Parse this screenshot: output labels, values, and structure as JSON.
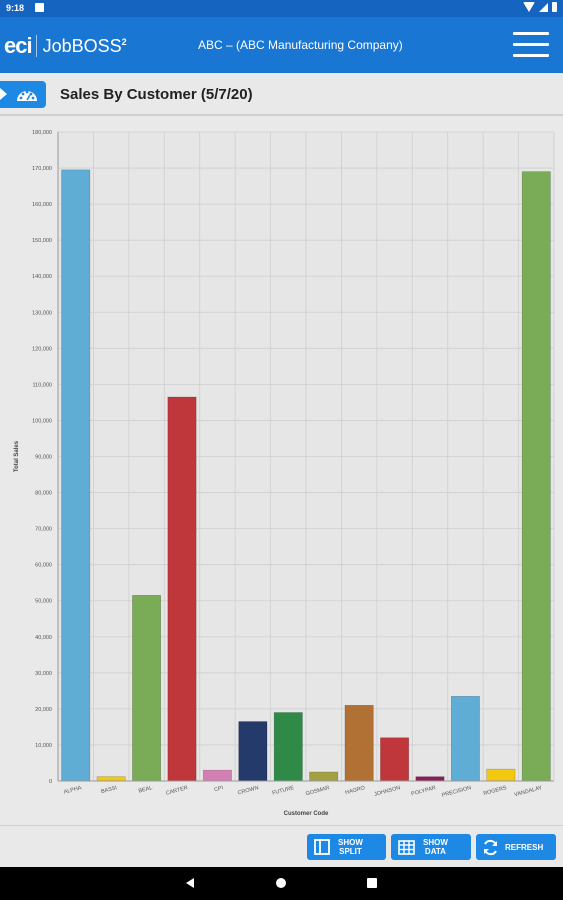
{
  "status_bar": {
    "time": "9:18"
  },
  "app_header": {
    "logo_text": "eci",
    "product_name": "JobBOSS",
    "product_superscript": "2",
    "company": "ABC – (ABC Manufacturing Company)"
  },
  "page": {
    "title": "Sales By Customer (5/7/20)"
  },
  "chart_data": {
    "type": "bar",
    "xlabel": "Customer Code",
    "ylabel": "Total Sales",
    "ylim": [
      0,
      180000
    ],
    "yticks": [
      0,
      10000,
      20000,
      30000,
      40000,
      50000,
      60000,
      70000,
      80000,
      90000,
      100000,
      110000,
      120000,
      130000,
      140000,
      150000,
      160000,
      170000,
      180000
    ],
    "ytick_labels": [
      "0",
      "10,000",
      "20,000",
      "30,000",
      "40,000",
      "50,000",
      "60,000",
      "70,000",
      "80,000",
      "90,000",
      "100,000",
      "110,000",
      "120,000",
      "130,000",
      "140,000",
      "150,000",
      "160,000",
      "170,000",
      "180,000"
    ],
    "grid": true,
    "categories": [
      "ALPHA",
      "BASSI",
      "BEAL",
      "CARTER",
      "CPI",
      "CROWN",
      "FUTURE",
      "GOSMAR",
      "HAGRO",
      "JOHNSON",
      "POLYPAR",
      "PRECISION",
      "ROGERS",
      "VANDALAY"
    ],
    "values": [
      169500,
      1200,
      51500,
      106500,
      3000,
      16500,
      19000,
      2500,
      21000,
      12000,
      1200,
      23500,
      3300,
      169000
    ],
    "colors": [
      "#5fadd5",
      "#f2c811",
      "#7aab56",
      "#c0373b",
      "#d47fb3",
      "#243a6b",
      "#2f8a48",
      "#a3a044",
      "#b17034",
      "#c0373b",
      "#8a1f57",
      "#5fadd5",
      "#f2c811",
      "#7aab56"
    ]
  },
  "actions": {
    "show_split": "SHOW\nSPLIT",
    "show_split_l1": "SHOW",
    "show_split_l2": "SPLIT",
    "show_data_l1": "SHOW",
    "show_data_l2": "DATA",
    "refresh": "REFRESH"
  }
}
